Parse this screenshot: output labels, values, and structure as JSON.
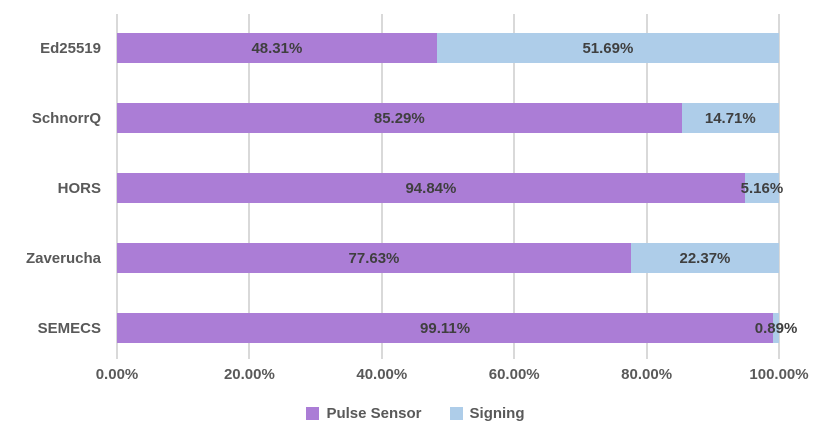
{
  "chart_data": {
    "type": "bar",
    "orientation": "horizontal",
    "stacked": true,
    "title": "",
    "xlabel": "",
    "ylabel": "",
    "categories": [
      "Ed25519",
      "SchnorrQ",
      "HORS",
      "Zaverucha",
      "SEMECS"
    ],
    "series": [
      {
        "name": "Pulse Sensor",
        "color": "#ab7dd6",
        "values": [
          48.31,
          85.29,
          94.84,
          77.63,
          99.11
        ],
        "labels": [
          "48.31%",
          "85.29%",
          "94.84%",
          "77.63%",
          "99.11%"
        ]
      },
      {
        "name": "Signing",
        "color": "#aecde9",
        "values": [
          51.69,
          14.71,
          5.16,
          22.37,
          0.89
        ],
        "labels": [
          "51.69%",
          "14.71%",
          "5.16%",
          "22.37%",
          "0.89%"
        ]
      }
    ],
    "x_axis": {
      "range": [
        0,
        100
      ],
      "ticks": [
        0,
        20,
        40,
        60,
        80,
        100
      ],
      "tick_labels": [
        "0.00%",
        "20.00%",
        "40.00%",
        "60.00%",
        "80.00%",
        "100.00%"
      ]
    },
    "grid": true,
    "legend_position": "bottom",
    "colors": {
      "background": "#ffffff",
      "gridline": "#d9d9d9",
      "axis_text": "#595959",
      "data_label_text": "#3f3f3f"
    }
  }
}
